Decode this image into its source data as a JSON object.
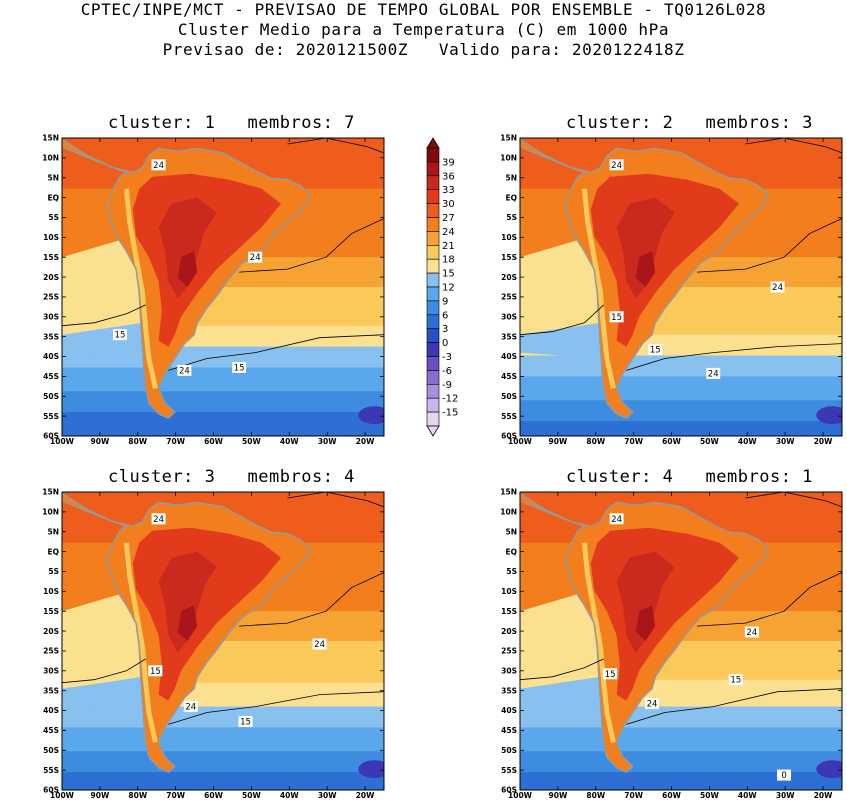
{
  "header": {
    "line1": "CPTEC/INPE/MCT - PREVISAO DE TEMPO GLOBAL POR ENSEMBLE - TQ0126L028",
    "line2": "Cluster Medio para a Temperatura (C) em 1000 hPa",
    "line3": "Previsao de: 2020121500Z   Valido para: 2020122418Z"
  },
  "colors": {
    "palette": [
      "#e3d7f2",
      "#c8b5e9",
      "#a88fdb",
      "#8a6cd0",
      "#6b4dc2",
      "#3c37b4",
      "#2451c4",
      "#2d6fd2",
      "#3e8ce0",
      "#5aa7eb",
      "#88c0f0",
      "#fbe08f",
      "#fbc85a",
      "#f6a333",
      "#f27e1e",
      "#ee5d1b",
      "#e23b1c",
      "#c92a1d",
      "#a8151a",
      "#800a0d"
    ],
    "land_outline": "#999999",
    "contour": "#000000"
  },
  "colorbar": {
    "labels": [
      "39",
      "36",
      "33",
      "30",
      "27",
      "24",
      "21",
      "18",
      "15",
      "12",
      "9",
      "6",
      "3",
      "0",
      "-3",
      "-6",
      "-9",
      "-12",
      "-15"
    ]
  },
  "axes": {
    "lat_labels": [
      "15N",
      "10N",
      "5N",
      "EQ",
      "5S",
      "10S",
      "15S",
      "20S",
      "25S",
      "30S",
      "35S",
      "40S",
      "45S",
      "50S",
      "55S",
      "60S"
    ],
    "lon_labels": [
      "100W",
      "90W",
      "80W",
      "70W",
      "60W",
      "50W",
      "40W",
      "30W",
      "20W"
    ]
  },
  "panels": [
    {
      "title": "cluster: 1   membros: 7",
      "contour_labels": [
        "24",
        "24",
        "15",
        "15",
        "24"
      ]
    },
    {
      "title": "cluster: 2   membros: 3",
      "contour_labels": [
        "24",
        "24",
        "15",
        "24",
        "15"
      ]
    },
    {
      "title": "cluster: 3   membros: 4",
      "contour_labels": [
        "24",
        "24",
        "15",
        "24",
        "15"
      ]
    },
    {
      "title": "cluster: 4   membros: 1",
      "contour_labels": [
        "24",
        "24",
        "15",
        "24",
        "15",
        "0"
      ]
    }
  ]
}
